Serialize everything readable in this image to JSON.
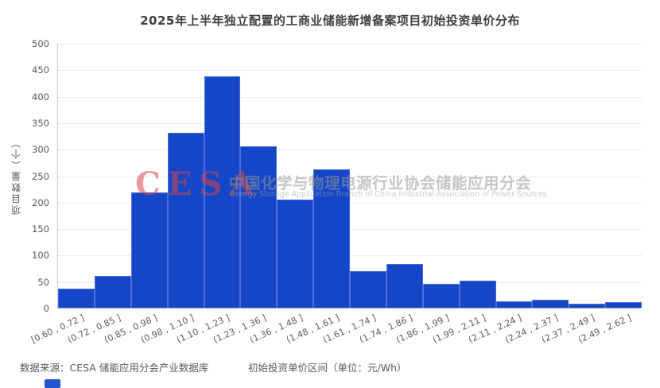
{
  "title": "2025年上半年独立配置的工商业储能新增备案项目初始投资单价分布",
  "watermark": {
    "logo_text": "CESA",
    "cn_text": "中国化学与物理电源行业协会储能应用分会",
    "en_text": "Energy Storage Application Branch of China Industrial Association of Power Sources"
  },
  "footer": {
    "source": "数据来源：CESA 储能应用分会产业数据库",
    "x_axis_title": "初始投资单价区间（单位：元/Wh）"
  },
  "colors": {
    "bar_fill": "#1646C8",
    "bar_edge": "#4A70DC",
    "watermark_red": "#D64646",
    "text_dark": "#3F3F3F",
    "text_gray": "#595959",
    "gridline": "#DCDCDC"
  },
  "chart_data": {
    "type": "bar",
    "title": "2025年上半年独立配置的工商业储能新增备案项目初始投资单价分布",
    "xlabel": "初始投资单价区间（单位：元/Wh）",
    "ylabel": "项目数量（个）",
    "ylim": [
      0,
      500
    ],
    "ytick_step": 50,
    "grid": true,
    "legend": "none",
    "categories": [
      "[0.60 , 0.72 ]",
      "(0.72 , 0.85 ]",
      "(0.85 , 0.98 ]",
      "(0.98 , 1.10 ]",
      "(1.10 , 1.23 ]",
      "(1.23 , 1.36 ]",
      "(1.36 , 1.48 ]",
      "(1.48 , 1.61 ]",
      "(1.61 , 1.74 ]",
      "(1.74 , 1.86 ]",
      "(1.86 , 1.99 ]",
      "(1.99 , 2.11 ]",
      "(2.11 , 2.24 ]",
      "(2.24 , 2.37 ]",
      "(2.37 , 2.49 ]",
      "(2.49 , 2.62 ]"
    ],
    "values": [
      36,
      60,
      218,
      331,
      437,
      305,
      204,
      262,
      69,
      82,
      45,
      51,
      12,
      15,
      7,
      10
    ]
  }
}
